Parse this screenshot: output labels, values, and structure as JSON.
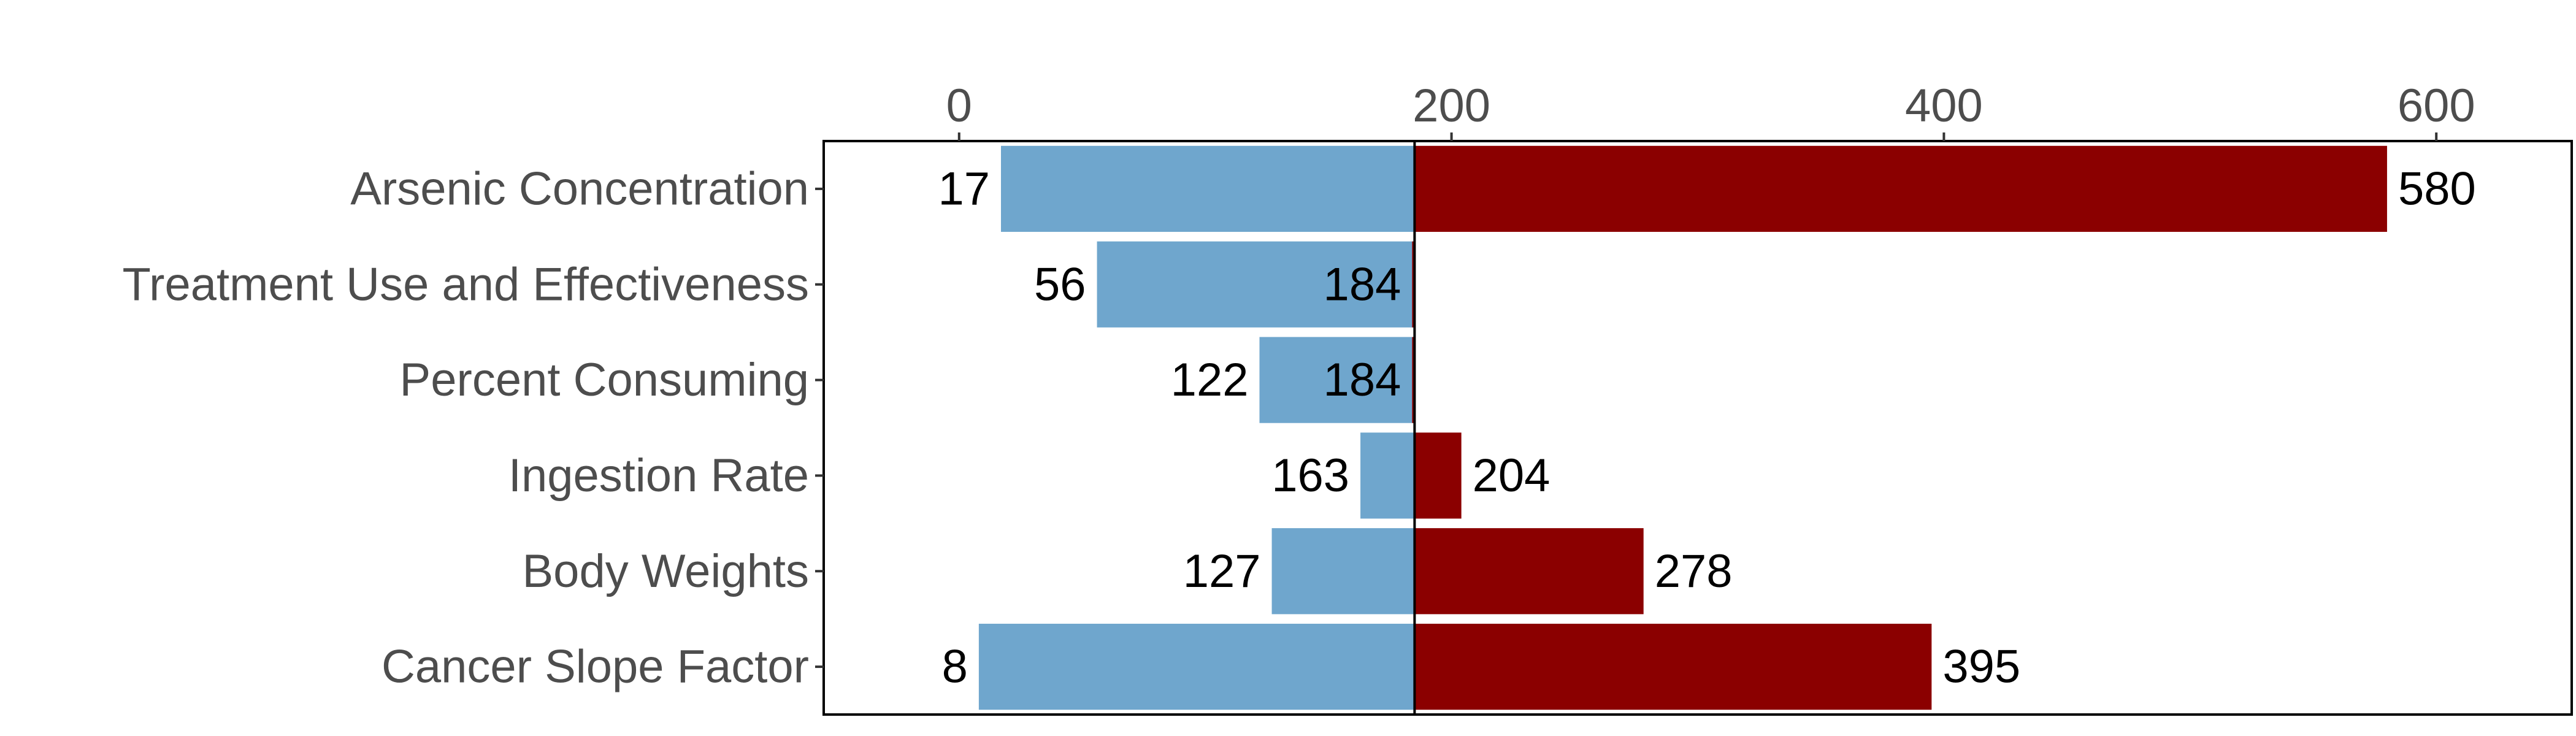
{
  "chart_data": {
    "type": "bar",
    "orientation": "horizontal",
    "style": "tornado",
    "baseline": 185,
    "categories": [
      "Arsenic Concentration",
      "Treatment Use and Effectiveness",
      "Percent Consuming",
      "Ingestion Rate",
      "Body Weights",
      "Cancer Slope Factor"
    ],
    "series": [
      {
        "color": "#6fa6cd",
        "values": [
          17,
          56,
          122,
          163,
          127,
          8
        ]
      },
      {
        "color": "#8b0000",
        "values": [
          580,
          184,
          184,
          204,
          278,
          395
        ]
      }
    ],
    "xlim": [
      -55,
      655
    ],
    "xticks": [
      0,
      200,
      400,
      600
    ],
    "xtick_labels": [
      "0",
      "200",
      "400",
      "600"
    ],
    "axis_position": "top",
    "grid": false,
    "legend": "none",
    "title": "",
    "xlabel": "",
    "ylabel": ""
  }
}
